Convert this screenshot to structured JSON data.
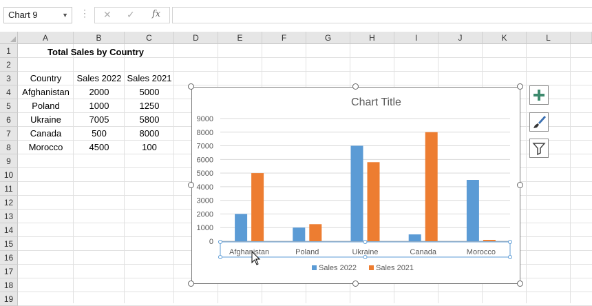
{
  "formula_bar": {
    "name_box": "Chart 9",
    "cancel_icon": "✕",
    "enter_icon": "✓",
    "fx_label": "fx",
    "formula": ""
  },
  "columns": [
    "A",
    "B",
    "C",
    "D",
    "E",
    "F",
    "G",
    "H",
    "I",
    "J",
    "K",
    "L"
  ],
  "rows": [
    "1",
    "2",
    "3",
    "4",
    "5",
    "6",
    "7",
    "8",
    "9",
    "10",
    "11",
    "12",
    "13",
    "14",
    "15",
    "16",
    "17",
    "18",
    "19"
  ],
  "sheet": {
    "title": "Total Sales by Country",
    "headers": [
      "Country",
      "Sales 2022",
      "Sales 2021"
    ],
    "data": [
      [
        "Afghanistan",
        "2000",
        "5000"
      ],
      [
        "Poland",
        "1000",
        "1250"
      ],
      [
        "Ukraine",
        "7005",
        "5800"
      ],
      [
        "Canada",
        "500",
        "8000"
      ],
      [
        "Morocco",
        "4500",
        "100"
      ]
    ]
  },
  "chart_data": {
    "type": "bar",
    "title": "Chart Title",
    "categories": [
      "Afghanistan",
      "Poland",
      "Ukraine",
      "Canada",
      "Morocco"
    ],
    "series": [
      {
        "name": "Sales 2022",
        "values": [
          2000,
          1000,
          7005,
          500,
          4500
        ],
        "color": "#5b9bd5"
      },
      {
        "name": "Sales 2021",
        "values": [
          5000,
          1250,
          5800,
          8000,
          100
        ],
        "color": "#ed7d31"
      }
    ],
    "yticks": [
      "0",
      "1000",
      "2000",
      "3000",
      "4000",
      "5000",
      "6000",
      "7000",
      "8000",
      "9000"
    ],
    "ylim": [
      0,
      9000
    ],
    "grid": true,
    "legend_position": "bottom"
  },
  "side_buttons": [
    {
      "name": "chart-elements-button",
      "icon": "plus-icon"
    },
    {
      "name": "chart-styles-button",
      "icon": "brush-icon"
    },
    {
      "name": "chart-filters-button",
      "icon": "filter-icon"
    }
  ],
  "colors": {
    "accent_plus": "#3e8a6e",
    "header_bg": "#e6e6e6"
  }
}
